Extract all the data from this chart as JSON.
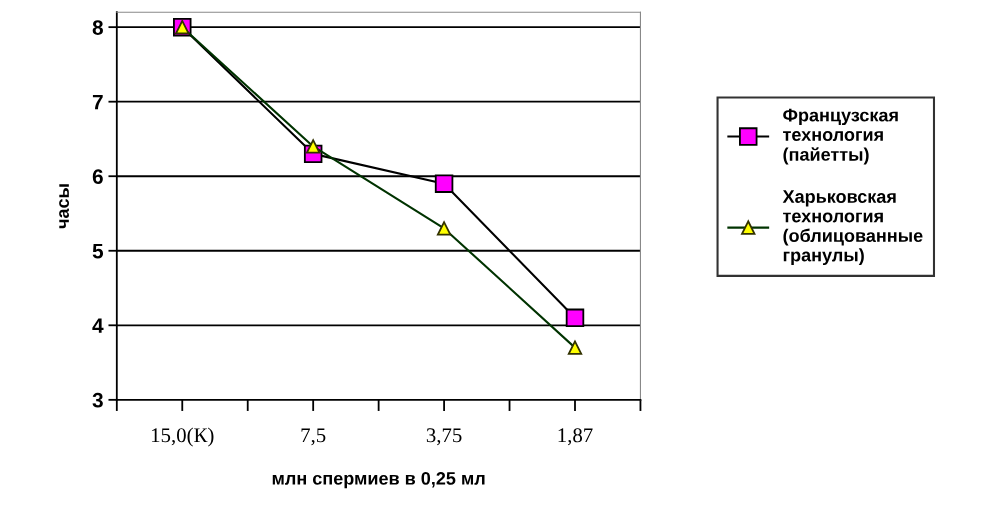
{
  "chart_data": {
    "type": "line",
    "xlabel": "млн спермиев в 0,25 мл",
    "ylabel": "часы",
    "categories": [
      "15,0(К)",
      "7,5",
      "3,75",
      "1,87"
    ],
    "series": [
      {
        "name": "Французская технология (пайетты)",
        "color": "#ff00ff",
        "marker": "square",
        "values": [
          8,
          6.3,
          5.9,
          4.1
        ]
      },
      {
        "name": "Харьковская технология (облицованные гранулы)",
        "color": "#ffff00",
        "marker": "triangle",
        "values": [
          8,
          6.4,
          5.3,
          3.7
        ]
      }
    ],
    "ylim": [
      3,
      8.2
    ],
    "yticks": [
      3,
      4,
      5,
      6,
      7,
      8
    ],
    "grid": "y",
    "legend": "right"
  }
}
